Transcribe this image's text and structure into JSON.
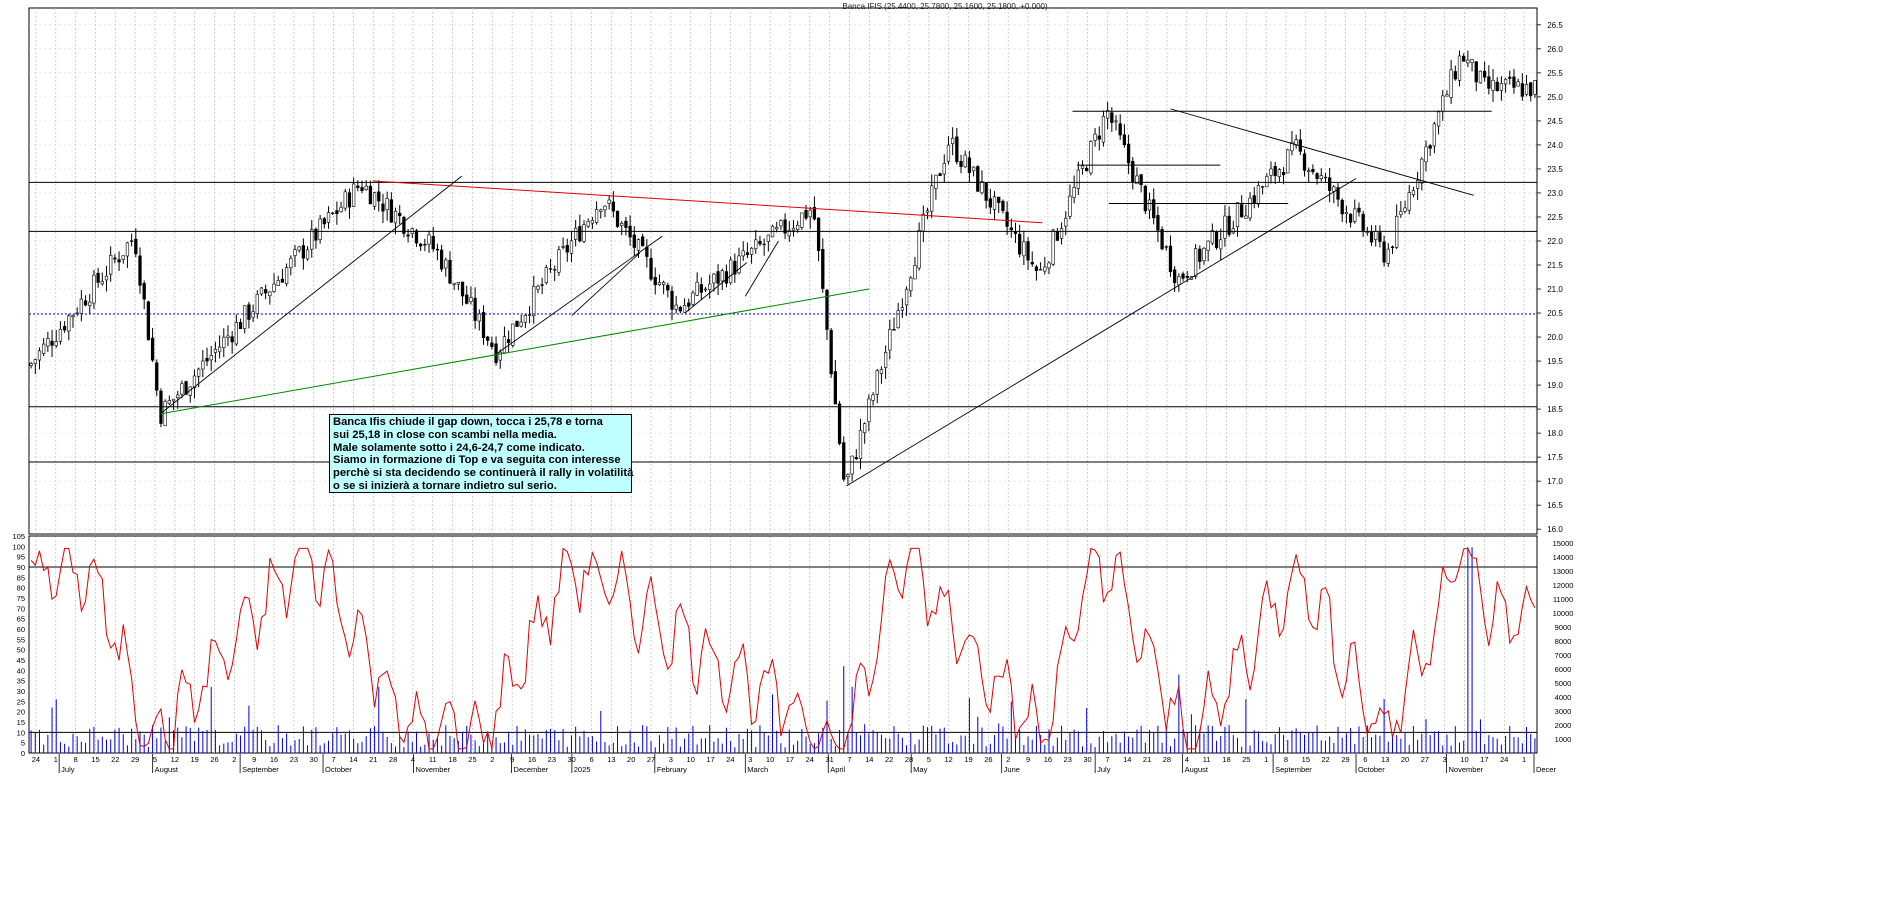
{
  "chart_data": [
    {
      "type": "candlestick",
      "title": "Banca IFIS (25.4400, 25.7800, 25.1600, 25.1800, +0.000)",
      "y_ticks": [
        "16.0",
        "16.5",
        "17.0",
        "17.5",
        "18.0",
        "18.5",
        "19.0",
        "19.5",
        "20.0",
        "20.5",
        "21.0",
        "21.5",
        "22.0",
        "22.5",
        "23.0",
        "23.5",
        "24.0",
        "24.5",
        "25.0",
        "25.5",
        "26.0",
        "26.5"
      ],
      "ylim": [
        15.9,
        26.85
      ],
      "grid": true,
      "last_bar": {
        "open": 25.44,
        "high": 25.78,
        "low": 25.16,
        "close": 25.18,
        "change": 0.0
      },
      "horizontal_levels": [
        17.4,
        18.55,
        22.2,
        23.22
      ],
      "dotted_level": 20.48,
      "resistance_segments": [
        {
          "from": 24.7,
          "to": 24.7,
          "span": "Jul 2025 - Nov 2025"
        },
        {
          "from": 23.58,
          "to": 23.58,
          "span": "Jul 2025 - Sep 2025"
        },
        {
          "from": 22.78,
          "to": 22.78,
          "span": "Jul 2025 - Sep 2025"
        }
      ],
      "trendlines": [
        {
          "color": "#e00000",
          "from": [
            0.1,
            23.25
          ],
          "to": [
            0.53,
            22.38
          ]
        },
        {
          "color": "#008800",
          "from": [
            0.0,
            18.4
          ],
          "to": [
            0.6,
            21.0
          ]
        }
      ],
      "series_key_points": [
        {
          "label": "Jun 2024 low",
          "y": 19.4
        },
        {
          "label": "Aug 2024 high",
          "y": 22.1
        },
        {
          "label": "Aug 5 2024 low",
          "y": 18.4
        },
        {
          "label": "Oct 2024 high",
          "y": 23.2
        },
        {
          "label": "Nov 2024 low",
          "y": 21.8
        },
        {
          "label": "Dec 2024 low",
          "y": 19.7
        },
        {
          "label": "Jan 2025 high",
          "y": 22.9
        },
        {
          "label": "Feb 2025 low",
          "y": 20.6
        },
        {
          "label": "Mar 2025 high",
          "y": 22.7
        },
        {
          "label": "Apr 7 2025 low",
          "y": 16.85
        },
        {
          "label": "May 2025 high",
          "y": 24.1
        },
        {
          "label": "Jun 2025 low",
          "y": 21.3
        },
        {
          "label": "Jul 2025 high",
          "y": 24.7
        },
        {
          "label": "Aug 2025 low",
          "y": 21.2
        },
        {
          "label": "Sep 2025 high",
          "y": 23.9
        },
        {
          "label": "Oct 2025 low",
          "y": 21.7
        },
        {
          "label": "Nov 2025 high",
          "y": 25.9
        },
        {
          "label": "last close",
          "y": 25.18
        }
      ],
      "x_day_labels": [
        "24",
        "1",
        "8",
        "15",
        "22",
        "29",
        "5",
        "12",
        "19",
        "26",
        "2",
        "9",
        "16",
        "23",
        "30",
        "7",
        "14",
        "21",
        "28",
        "4",
        "11",
        "18",
        "25",
        "2",
        "9",
        "16",
        "23",
        "30",
        "6",
        "13",
        "20",
        "27",
        "3",
        "10",
        "17",
        "24",
        "3",
        "10",
        "17",
        "24",
        "31",
        "7",
        "14",
        "22",
        "28",
        "5",
        "12",
        "19",
        "26",
        "2",
        "9",
        "16",
        "23",
        "30",
        "7",
        "14",
        "21",
        "28",
        "4",
        "11",
        "18",
        "25",
        "1",
        "8",
        "15",
        "22",
        "29",
        "6",
        "13",
        "20",
        "27",
        "3",
        "10",
        "17",
        "24",
        "1"
      ],
      "x_month_labels": [
        "July",
        "August",
        "September",
        "October",
        "November",
        "December",
        "2025",
        "February",
        "March",
        "April",
        "May",
        "June",
        "July",
        "August",
        "September",
        "October",
        "November",
        "Decer"
      ]
    },
    {
      "type": "line+bar",
      "series": [
        {
          "kind": "oscillator line",
          "color": "#e00000"
        },
        {
          "kind": "volume bars",
          "color": "#0000dd"
        }
      ],
      "left_ticks": [
        "0",
        "5",
        "10",
        "15",
        "20",
        "25",
        "30",
        "35",
        "40",
        "45",
        "50",
        "55",
        "60",
        "65",
        "70",
        "75",
        "80",
        "85",
        "90",
        "95",
        "100",
        "105"
      ],
      "left_ylim": [
        0,
        105
      ],
      "right_ticks": [
        "1000",
        "2000",
        "3000",
        "4000",
        "5000",
        "6000",
        "7000",
        "8000",
        "9000",
        "10000",
        "11000",
        "12000",
        "13000",
        "14000",
        "15000"
      ],
      "right_ylim": [
        0,
        15500
      ],
      "levels": [
        10,
        90,
        105
      ],
      "osc_key_points": [
        {
          "label": "Jul 2024",
          "y": 88
        },
        {
          "label": "Aug 5 2024",
          "y": 5
        },
        {
          "label": "Oct 2024",
          "y": 98
        },
        {
          "label": "Nov 2024",
          "y": 10
        },
        {
          "label": "Dec 2024",
          "y": 8
        },
        {
          "label": "Jan 2025",
          "y": 92
        },
        {
          "label": "Apr 7 2025",
          "y": 3
        },
        {
          "label": "May 2025",
          "y": 96
        },
        {
          "label": "Jun 2025",
          "y": 8
        },
        {
          "label": "Jul 2025",
          "y": 98
        },
        {
          "label": "Aug 4 2025",
          "y": 2
        },
        {
          "label": "Sep 2025",
          "y": 89
        },
        {
          "label": "Oct 2025",
          "y": 8
        },
        {
          "label": "Nov 10 2025",
          "y": 98
        },
        {
          "label": "last",
          "y": 66
        }
      ],
      "volume_key_points": [
        {
          "label": "Apr 7 2025",
          "v": 6200
        },
        {
          "label": "Aug 4 2025",
          "v": 5600
        },
        {
          "label": "Nov 10 2025",
          "v": 14700
        }
      ]
    }
  ],
  "annotation": {
    "lines": [
      "Banca Ifis chiude il gap down, tocca i 25,78 e torna",
      "sui 25,18 in close con scambi nella media.",
      "Male solamente sotto i 24,6-24,7 come indicato.",
      "Siamo in formazione di Top e va seguita con interesse",
      "perchè si sta decidendo se continuerà il rally in volatilità",
      "o se si inizierà a tornare indietro sul serio."
    ]
  }
}
